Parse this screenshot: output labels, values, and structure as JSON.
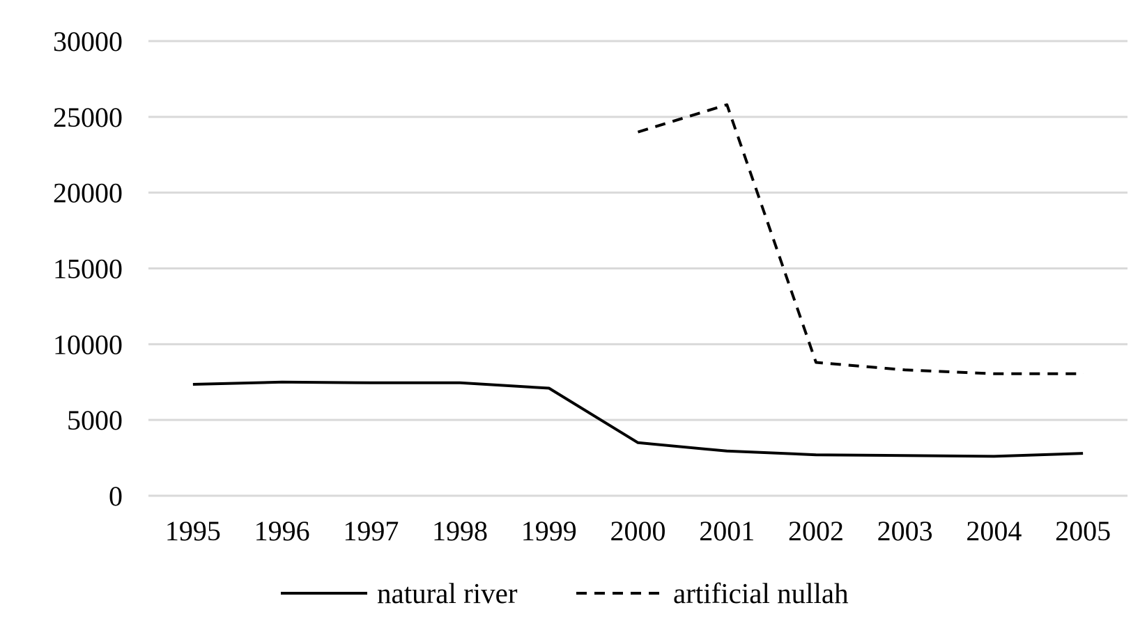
{
  "chart_data": {
    "type": "line",
    "title": "",
    "xlabel": "",
    "ylabel": "",
    "categories": [
      "1995",
      "1996",
      "1997",
      "1998",
      "1999",
      "2000",
      "2001",
      "2002",
      "2003",
      "2004",
      "2005"
    ],
    "ylim": [
      0,
      30000
    ],
    "yticks": [
      "0",
      "5000",
      "10000",
      "15000",
      "20000",
      "25000",
      "30000"
    ],
    "grid": true,
    "legend_position": "bottom",
    "series": [
      {
        "name": "natural river",
        "style": "solid",
        "color": "#000000",
        "values": [
          7350,
          7500,
          7450,
          7450,
          7100,
          3500,
          2950,
          2700,
          2650,
          2600,
          2800
        ]
      },
      {
        "name": "artificial nullah",
        "style": "dashed",
        "color": "#000000",
        "values": [
          null,
          null,
          null,
          null,
          null,
          24000,
          25800,
          8800,
          8300,
          8050,
          8050
        ]
      }
    ]
  }
}
